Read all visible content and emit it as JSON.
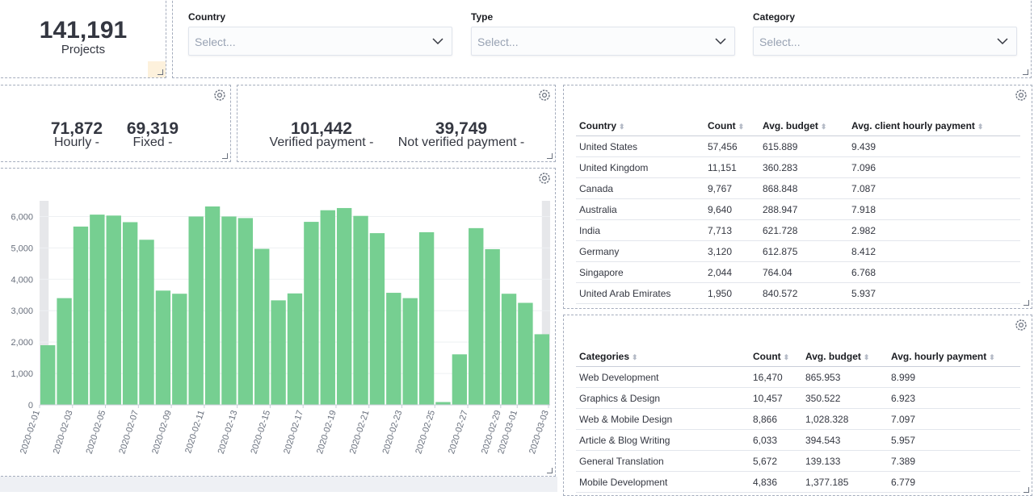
{
  "metrics": {
    "projects": {
      "value": "141,191",
      "label": "Projects"
    },
    "type_split": [
      {
        "value": "71,872",
        "label": "Hourly -"
      },
      {
        "value": "69,319",
        "label": "Fixed -"
      }
    ],
    "payment_split": [
      {
        "value": "101,442",
        "label": "Verified payment -"
      },
      {
        "value": "39,749",
        "label": "Not verified payment -"
      }
    ]
  },
  "controls": [
    {
      "label": "Country",
      "placeholder": "Select..."
    },
    {
      "label": "Type",
      "placeholder": "Select..."
    },
    {
      "label": "Category",
      "placeholder": "Select..."
    }
  ],
  "chart_data": {
    "type": "bar",
    "color": "#76cf91",
    "values": [
      1900,
      3400,
      5680,
      6060,
      6030,
      5820,
      5260,
      3640,
      3540,
      6000,
      6320,
      6000,
      5950,
      4970,
      3330,
      3550,
      5830,
      6200,
      6270,
      6020,
      5470,
      3570,
      3400,
      5500,
      90,
      1610,
      5630,
      4960,
      3540,
      3250,
      2250
    ],
    "xticks": [
      "2020-02-01",
      "2020-02-03",
      "2020-02-05",
      "2020-02-07",
      "2020-02-09",
      "2020-02-11",
      "2020-02-13",
      "2020-02-15",
      "2020-02-17",
      "2020-02-19",
      "2020-02-21",
      "2020-02-23",
      "2020-02-25",
      "2020-02-27",
      "2020-02-29",
      "2020-03-01",
      "2020-03-03"
    ],
    "ylim": [
      0,
      6500
    ],
    "yticks": [
      0,
      {
        "value": 1000,
        "label": "1,000"
      },
      {
        "value": 2000,
        "label": "2,000"
      },
      {
        "value": 3000,
        "label": "3,000"
      },
      {
        "value": 4000,
        "label": "4,000"
      },
      {
        "value": 5000,
        "label": "5,000"
      },
      {
        "value": 6000,
        "label": "6,000"
      }
    ],
    "grid": true
  },
  "country_table": {
    "columns": [
      "Country",
      "Count",
      "Avg. budget",
      "Avg. client hourly payment"
    ],
    "rows": [
      [
        "United States",
        "57,456",
        "615.889",
        "9.439"
      ],
      [
        "United Kingdom",
        "11,151",
        "360.283",
        "7.096"
      ],
      [
        "Canada",
        "9,767",
        "868.848",
        "7.087"
      ],
      [
        "Australia",
        "9,640",
        "288.947",
        "7.918"
      ],
      [
        "India",
        "7,713",
        "621.728",
        "2.982"
      ],
      [
        "Germany",
        "3,120",
        "612.875",
        "8.412"
      ],
      [
        "Singapore",
        "2,044",
        "764.04",
        "6.768"
      ],
      [
        "United Arab Emirates",
        "1,950",
        "840.572",
        "5.937"
      ]
    ]
  },
  "category_table": {
    "columns": [
      "Categories",
      "Count",
      "Avg. budget",
      "Avg. hourly payment"
    ],
    "rows": [
      [
        "Web Development",
        "16,470",
        "865.953",
        "8.999"
      ],
      [
        "Graphics & Design",
        "10,457",
        "350.522",
        "6.923"
      ],
      [
        "Web & Mobile Design",
        "8,866",
        "1,028.328",
        "7.097"
      ],
      [
        "Article & Blog Writing",
        "6,033",
        "394.543",
        "5.957"
      ],
      [
        "General Translation",
        "5,672",
        "139.133",
        "7.389"
      ],
      [
        "Mobile Development",
        "4,836",
        "1,377.185",
        "6.779"
      ]
    ]
  }
}
